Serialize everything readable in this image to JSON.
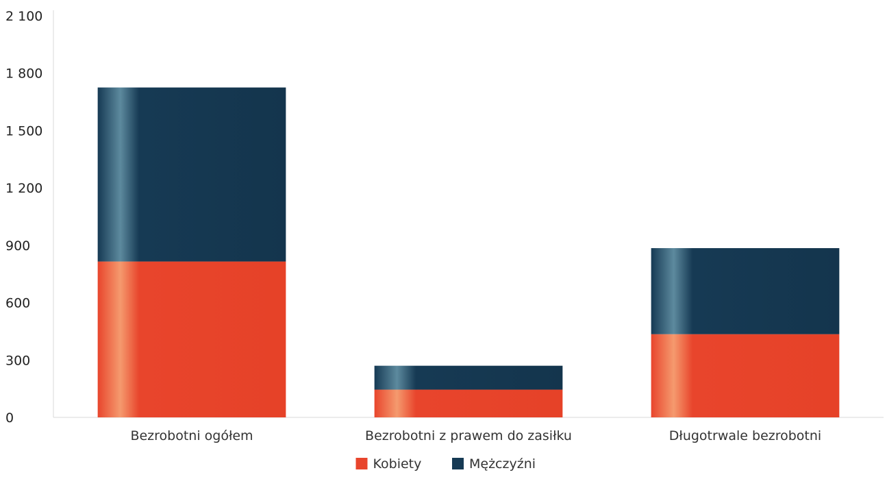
{
  "chart_data": {
    "type": "bar",
    "stacked": true,
    "categories": [
      "Bezrobotni ogółem",
      "Bezrobotni z prawem do zasiłku",
      "Długotrwale bezrobotni"
    ],
    "series": [
      {
        "name": "Kobiety",
        "values": [
          815,
          145,
          435
        ],
        "color": "#e8452c"
      },
      {
        "name": "Mężczyźni",
        "values": [
          910,
          125,
          450
        ],
        "color": "#163a54"
      }
    ],
    "yticks": [
      "0",
      "300",
      "600",
      "900",
      "1 200",
      "1 500",
      "1 800",
      "2 100"
    ],
    "ylim": [
      0,
      2100
    ],
    "title": "",
    "xlabel": "",
    "ylabel": "",
    "legend_position": "bottom-center",
    "grid": false
  }
}
